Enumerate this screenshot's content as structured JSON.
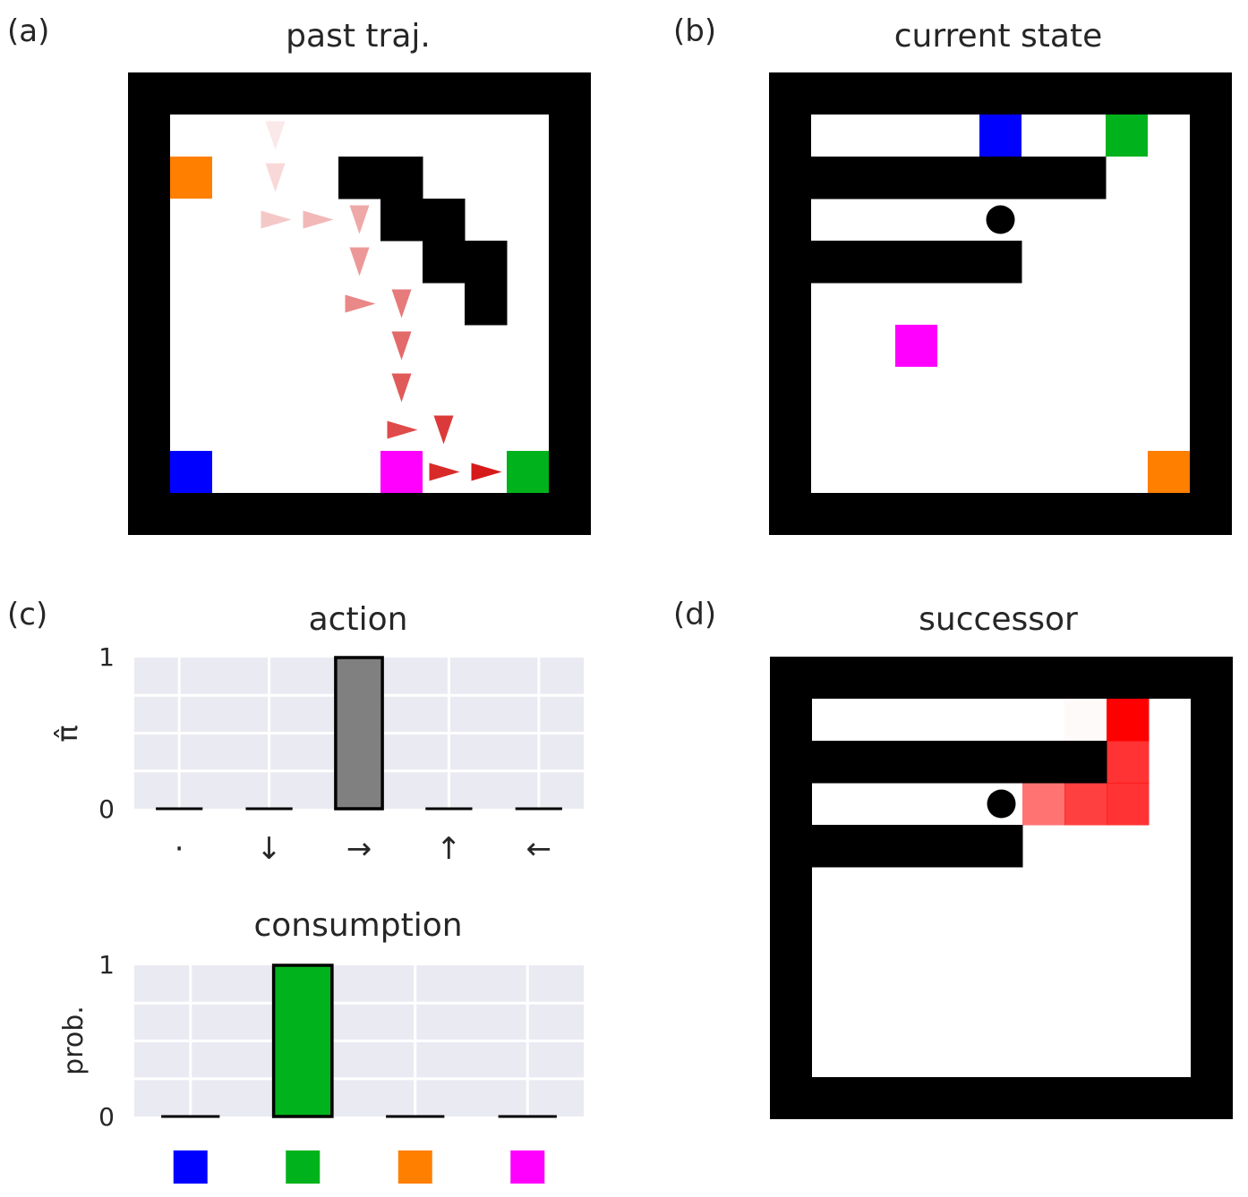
{
  "panels": {
    "a": {
      "label": "(a)",
      "title": "past traj.",
      "walls": [
        [
          4,
          1
        ],
        [
          5,
          1
        ],
        [
          5,
          2
        ],
        [
          6,
          2
        ],
        [
          6,
          3
        ],
        [
          7,
          3
        ],
        [
          7,
          4
        ]
      ],
      "items": [
        {
          "color": "#ff7f00",
          "cell": [
            0,
            1
          ]
        },
        {
          "color": "#0000ff",
          "cell": [
            0,
            8
          ]
        },
        {
          "color": "#ff00ff",
          "cell": [
            5,
            8
          ]
        },
        {
          "color": "#00b21c",
          "cell": [
            8,
            8
          ]
        }
      ],
      "trajectory": [
        {
          "cell": [
            2,
            0
          ],
          "dir": "down"
        },
        {
          "cell": [
            2,
            1
          ],
          "dir": "down"
        },
        {
          "cell": [
            2,
            2
          ],
          "dir": "right"
        },
        {
          "cell": [
            3,
            2
          ],
          "dir": "right"
        },
        {
          "cell": [
            4,
            2
          ],
          "dir": "down"
        },
        {
          "cell": [
            4,
            3
          ],
          "dir": "down"
        },
        {
          "cell": [
            4,
            4
          ],
          "dir": "right"
        },
        {
          "cell": [
            5,
            4
          ],
          "dir": "down"
        },
        {
          "cell": [
            5,
            5
          ],
          "dir": "down"
        },
        {
          "cell": [
            5,
            6
          ],
          "dir": "down"
        },
        {
          "cell": [
            5,
            7
          ],
          "dir": "right"
        },
        {
          "cell": [
            6,
            7
          ],
          "dir": "down"
        },
        {
          "cell": [
            6,
            8
          ],
          "dir": "right"
        },
        {
          "cell": [
            7,
            8
          ],
          "dir": "right"
        }
      ]
    },
    "b": {
      "label": "(b)",
      "title": "current state",
      "walls": [
        [
          0,
          1
        ],
        [
          1,
          1
        ],
        [
          2,
          1
        ],
        [
          3,
          1
        ],
        [
          4,
          1
        ],
        [
          5,
          1
        ],
        [
          6,
          1
        ],
        [
          0,
          3
        ],
        [
          1,
          3
        ],
        [
          2,
          3
        ],
        [
          3,
          3
        ],
        [
          4,
          3
        ]
      ],
      "items": [
        {
          "color": "#0000ff",
          "cell": [
            4,
            0
          ]
        },
        {
          "color": "#00b21c",
          "cell": [
            7,
            0
          ]
        },
        {
          "color": "#ff00ff",
          "cell": [
            2,
            5
          ]
        },
        {
          "color": "#ff7f00",
          "cell": [
            8,
            8
          ]
        }
      ],
      "agent": [
        4,
        2
      ]
    },
    "c": {
      "label": "(c)",
      "action": {
        "title": "action",
        "ylabel": "π̂",
        "ytick_labels": [
          "0",
          "1"
        ],
        "categories": [
          "·",
          "↓",
          "→",
          "↑",
          "←"
        ],
        "values": [
          0,
          0,
          1,
          0,
          0
        ],
        "bar_color": "#808080"
      },
      "consumption": {
        "title": "consumption",
        "ylabel": "prob.",
        "ytick_labels": [
          "0",
          "1"
        ],
        "categories": [
          "#0000ff",
          "#00b21c",
          "#ff7f00",
          "#ff00ff"
        ],
        "values": [
          0,
          1,
          0,
          0
        ],
        "bar_color": "#00b21c"
      }
    },
    "d": {
      "label": "(d)",
      "title": "successor",
      "walls": [
        [
          0,
          1
        ],
        [
          1,
          1
        ],
        [
          2,
          1
        ],
        [
          3,
          1
        ],
        [
          4,
          1
        ],
        [
          5,
          1
        ],
        [
          6,
          1
        ],
        [
          0,
          3
        ],
        [
          1,
          3
        ],
        [
          2,
          3
        ],
        [
          3,
          3
        ],
        [
          4,
          3
        ]
      ],
      "agent": [
        4,
        2
      ],
      "heat": [
        {
          "cell": [
            6,
            0
          ],
          "value": 0.02
        },
        {
          "cell": [
            7,
            0
          ],
          "value": 1.0
        },
        {
          "cell": [
            7,
            1
          ],
          "value": 0.8
        },
        {
          "cell": [
            5,
            2
          ],
          "value": 0.55
        },
        {
          "cell": [
            6,
            2
          ],
          "value": 0.75
        },
        {
          "cell": [
            7,
            2
          ],
          "value": 0.8
        }
      ]
    }
  }
}
